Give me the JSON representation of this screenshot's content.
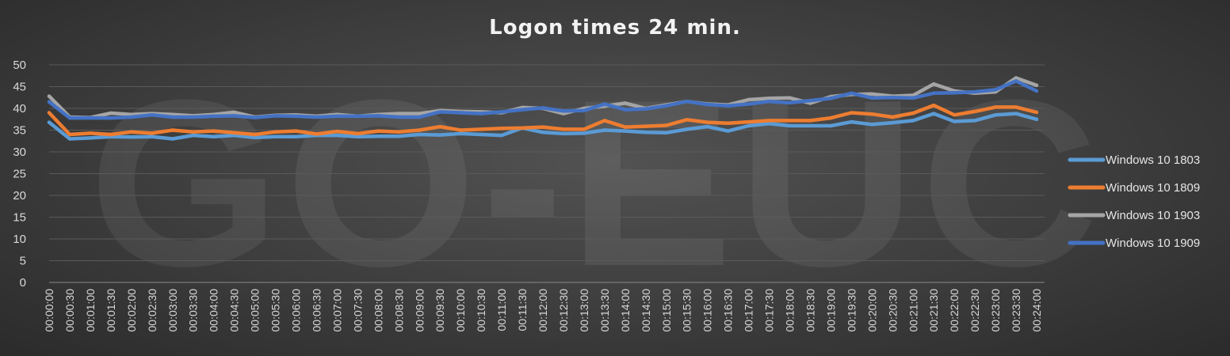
{
  "chart_data": {
    "type": "line",
    "title": "Logon times 24 min.",
    "xlabel": "",
    "ylabel": "",
    "ylim": [
      0,
      50
    ],
    "yticks": [
      0,
      5,
      10,
      15,
      20,
      25,
      30,
      35,
      40,
      45,
      50
    ],
    "grid": true,
    "legend": "right",
    "watermark": "GO-EUC",
    "categories": [
      "00:00:00",
      "00:00:30",
      "00:01:00",
      "00:01:30",
      "00:02:00",
      "00:02:30",
      "00:03:00",
      "00:03:30",
      "00:04:00",
      "00:04:30",
      "00:05:00",
      "00:05:30",
      "00:06:00",
      "00:06:30",
      "00:07:00",
      "00:07:30",
      "00:08:00",
      "00:08:30",
      "00:09:00",
      "00:09:30",
      "00:10:00",
      "00:10:30",
      "00:11:00",
      "00:11:30",
      "00:12:00",
      "00:12:30",
      "00:13:00",
      "00:13:30",
      "00:14:00",
      "00:14:30",
      "00:15:00",
      "00:15:30",
      "00:16:00",
      "00:16:30",
      "00:17:00",
      "00:17:30",
      "00:18:00",
      "00:18:30",
      "00:19:00",
      "00:19:30",
      "00:20:00",
      "00:20:30",
      "00:21:00",
      "00:21:30",
      "00:22:00",
      "00:22:30",
      "00:23:00",
      "00:23:30",
      "00:24:00"
    ],
    "series": [
      {
        "name": "Windows 10 1803",
        "color": "#5b9bd5",
        "values": [
          36.8,
          33.0,
          33.2,
          33.5,
          33.4,
          33.5,
          33.0,
          33.8,
          33.5,
          33.8,
          33.3,
          33.5,
          33.5,
          33.8,
          33.8,
          33.5,
          33.6,
          33.6,
          34.0,
          33.9,
          34.2,
          34.0,
          33.8,
          35.5,
          34.5,
          34.2,
          34.3,
          35.0,
          34.8,
          34.5,
          34.4,
          35.2,
          35.8,
          34.8,
          36.0,
          36.5,
          36.0,
          36.0,
          36.0,
          36.9,
          36.3,
          36.7,
          37.2,
          38.8,
          37.0,
          37.2,
          38.5,
          38.8,
          37.5
        ]
      },
      {
        "name": "Windows 10 1809",
        "color": "#ed7d31",
        "values": [
          39.0,
          34.0,
          34.3,
          34.0,
          34.6,
          34.3,
          35.0,
          34.6,
          34.8,
          34.4,
          34.0,
          34.6,
          34.8,
          34.1,
          34.7,
          34.2,
          34.8,
          34.6,
          35.0,
          35.8,
          35.0,
          35.2,
          35.4,
          35.5,
          35.7,
          35.2,
          35.2,
          37.2,
          35.7,
          35.9,
          36.1,
          37.4,
          36.8,
          36.6,
          36.9,
          37.2,
          37.2,
          37.2,
          37.8,
          39.0,
          38.7,
          38.0,
          38.9,
          40.7,
          38.5,
          39.3,
          40.3,
          40.3,
          39.1
        ]
      },
      {
        "name": "Windows 10 1903",
        "color": "#a5a5a5",
        "values": [
          42.8,
          38.0,
          37.9,
          38.9,
          38.6,
          38.8,
          38.6,
          38.3,
          38.6,
          39.1,
          38.0,
          38.4,
          38.5,
          38.2,
          38.6,
          38.2,
          38.6,
          38.8,
          38.8,
          39.5,
          39.3,
          39.2,
          39.0,
          40.2,
          40.0,
          38.8,
          40.0,
          40.5,
          41.2,
          40.0,
          40.8,
          41.6,
          41.0,
          40.8,
          42.0,
          42.3,
          42.4,
          41.2,
          42.7,
          43.2,
          43.3,
          42.8,
          43.0,
          45.6,
          44.0,
          43.5,
          43.8,
          47.0,
          45.3
        ]
      },
      {
        "name": "Windows 10 1909",
        "color": "#4472c4",
        "values": [
          41.5,
          37.8,
          37.8,
          37.8,
          38.0,
          38.5,
          38.0,
          38.0,
          38.2,
          38.3,
          37.9,
          38.3,
          38.2,
          38.0,
          38.2,
          38.2,
          38.3,
          38.0,
          38.0,
          39.2,
          39.0,
          38.8,
          39.2,
          39.7,
          40.1,
          39.4,
          39.5,
          41.0,
          39.7,
          39.9,
          40.6,
          41.6,
          40.9,
          40.6,
          41.0,
          41.6,
          41.3,
          41.8,
          42.3,
          43.5,
          42.4,
          42.5,
          42.4,
          43.5,
          43.6,
          43.8,
          44.3,
          46.3,
          44.0
        ]
      }
    ]
  }
}
